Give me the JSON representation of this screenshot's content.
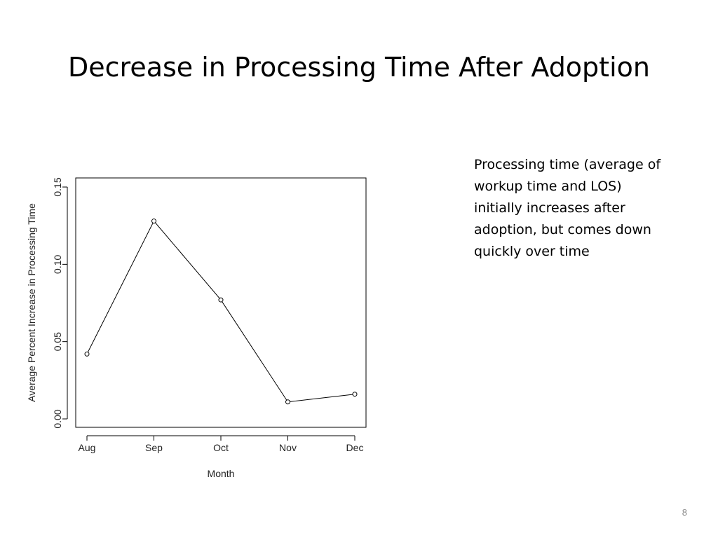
{
  "slide": {
    "title": "Decrease in Processing Time After Adoption",
    "note": "Processing time (average of workup time and LOS) initially increases after adoption, but comes down quickly over time",
    "page_number": "8"
  },
  "chart_data": {
    "type": "line",
    "categories": [
      "Aug",
      "Sep",
      "Oct",
      "Nov",
      "Dec"
    ],
    "values": [
      0.042,
      0.128,
      0.077,
      0.011,
      0.016
    ],
    "xlabel": "Month",
    "ylabel": "Average Percent Increase in Processing Time",
    "ylim": [
      0.0,
      0.15
    ],
    "yticks": [
      "0.00",
      "0.05",
      "0.10",
      "0.15"
    ],
    "markers": "open-circle",
    "grid": false,
    "line_color": "#000000"
  }
}
